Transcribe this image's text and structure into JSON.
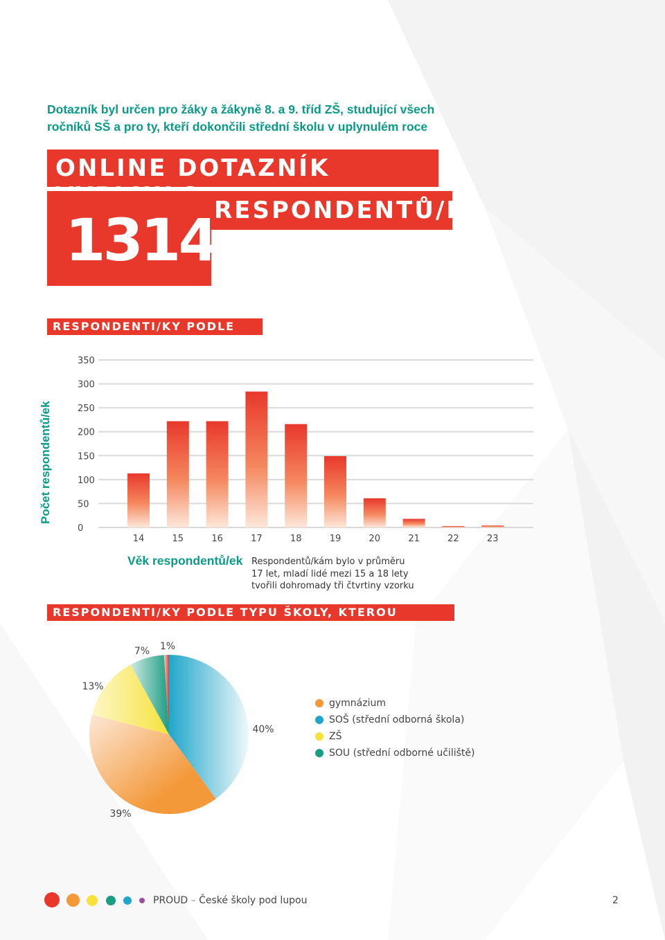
{
  "intro": {
    "line1": "Dotazník byl určen pro žáky a žákyně 8. a 9. tříd ZŠ, studující všech",
    "line2": "ročníků SŠ a pro ty, kteří dokončili střední školu v uplynulém roce"
  },
  "headline": {
    "line1": "ONLINE DOTAZNÍK VYPLNILO",
    "number": "1314",
    "line2": "RESPONDENTŮ/EK"
  },
  "section_age": "RESPONDENTI/KY PODLE VĚKU",
  "section_school": "RESPONDENTI/KY PODLE TYPU ŠKOLY, KTEROU NAVŠTĚVUJÍ",
  "age_note": {
    "line1": "Respondentů/kám bylo v průměru",
    "line2": "17 let, mladí lidé mezi 15 a 18 lety",
    "line3": "tvořili dohromady tři čtvrtiny vzorku"
  },
  "colors": {
    "accent_red": "#e8382c",
    "teal": "#0a9a87",
    "orange": "#f3993a",
    "blue": "#21a6c9",
    "yellow": "#f6e23a",
    "green": "#1a9e82",
    "purple": "#9a4f9e"
  },
  "chart_data": [
    {
      "type": "bar",
      "categories": [
        "14",
        "15",
        "16",
        "17",
        "18",
        "19",
        "20",
        "21",
        "22",
        "23"
      ],
      "values": [
        113,
        222,
        222,
        284,
        216,
        149,
        61,
        18,
        3,
        4
      ],
      "xlabel": "Věk respondentů/ek",
      "ylabel": "Počet respondentů/ek",
      "yticks": [
        0,
        50,
        100,
        150,
        200,
        250,
        300,
        350
      ],
      "ylim": [
        0,
        350
      ],
      "grid": true
    },
    {
      "type": "pie",
      "labels": [
        "gymnázium",
        "SOŠ (střední odborná škola)",
        "ZŠ",
        "SOU (střední odborné učiliště)"
      ],
      "values": [
        39,
        40,
        13,
        7
      ],
      "slice_labels": [
        "39%",
        "40%",
        "13%",
        "7%"
      ],
      "other_value": 1,
      "other_label": "1%",
      "colors": [
        "#f3993a",
        "#21a6c9",
        "#f6e23a",
        "#1a9e82"
      ],
      "other_color": "#e8382c",
      "legend_position": "right"
    }
  ],
  "footer": {
    "brand": "PROUD",
    "dash": "–",
    "title": "České školy pod lupou",
    "page": "2"
  }
}
